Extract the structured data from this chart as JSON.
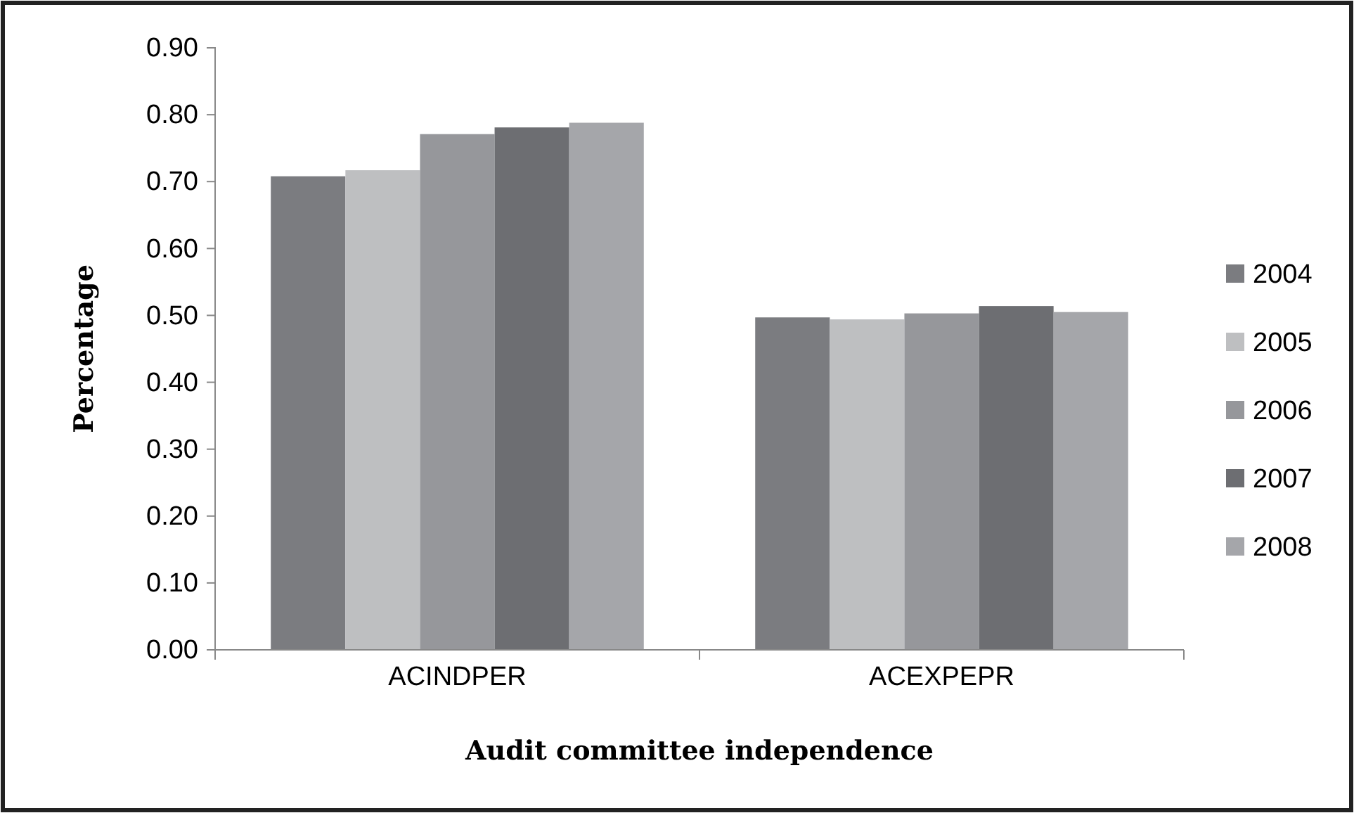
{
  "chart_data": {
    "type": "bar",
    "xlabel": "Audit committee  independence",
    "ylabel": "Percentage",
    "categories": [
      "ACINDPER",
      "ACEXPEPR"
    ],
    "series": [
      {
        "name": "2004",
        "color": "#7b7c80",
        "values": [
          0.708,
          0.497
        ]
      },
      {
        "name": "2005",
        "color": "#bebfc1",
        "values": [
          0.717,
          0.494
        ]
      },
      {
        "name": "2006",
        "color": "#96979b",
        "values": [
          0.771,
          0.503
        ]
      },
      {
        "name": "2007",
        "color": "#6d6e72",
        "values": [
          0.781,
          0.514
        ]
      },
      {
        "name": "2008",
        "color": "#a5a6aa",
        "values": [
          0.788,
          0.505
        ]
      }
    ],
    "ylim": [
      0,
      0.9
    ],
    "yticks": [
      {
        "value": 0,
        "label": "0.00"
      },
      {
        "value": 0.1,
        "label": "0.10"
      },
      {
        "value": 0.2,
        "label": "0.20"
      },
      {
        "value": 0.3,
        "label": "0.30"
      },
      {
        "value": 0.4,
        "label": "0.40"
      },
      {
        "value": 0.5,
        "label": "0.50"
      },
      {
        "value": 0.6,
        "label": "0.60"
      },
      {
        "value": 0.7,
        "label": "0.70"
      },
      {
        "value": 0.8,
        "label": "0.80"
      },
      {
        "value": 0.9,
        "label": "0.90"
      }
    ],
    "grid": false,
    "legend": "right"
  }
}
